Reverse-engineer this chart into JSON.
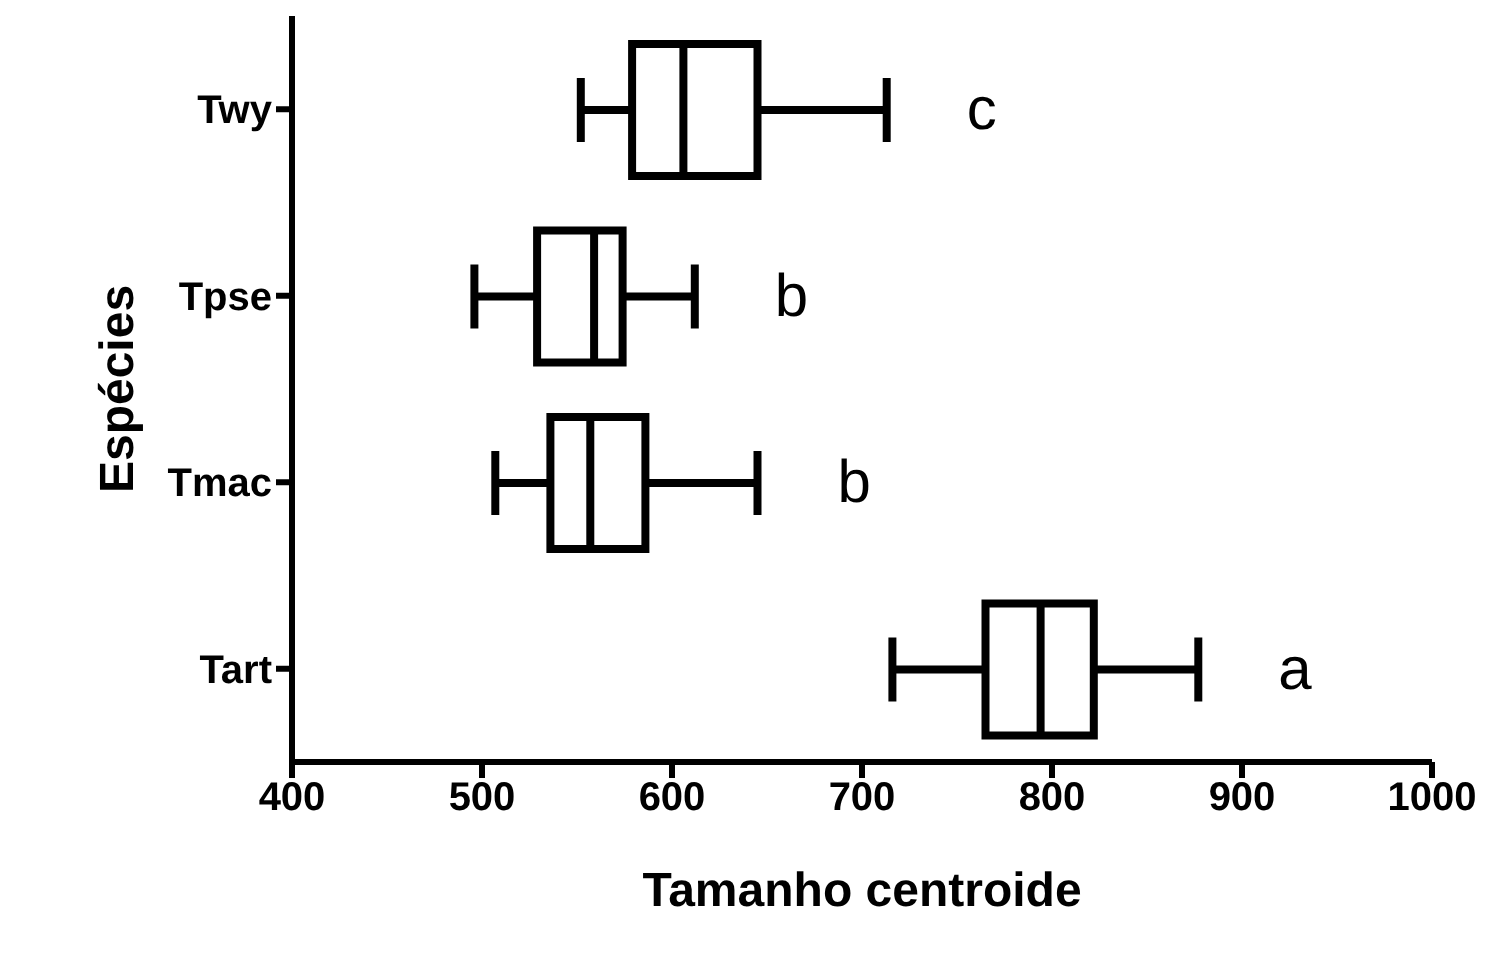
{
  "chart_data": {
    "type": "box",
    "orientation": "horizontal",
    "xlabel": "Tamanho centroide",
    "ylabel": "Espécies",
    "categories": [
      "Twy",
      "Tpse",
      "Tmac",
      "Tart"
    ],
    "boxes": [
      {
        "low": 552,
        "q1": 579,
        "median": 606,
        "q3": 645,
        "high": 713
      },
      {
        "low": 496,
        "q1": 529,
        "median": 559,
        "q3": 574,
        "high": 612
      },
      {
        "low": 507,
        "q1": 536,
        "median": 557,
        "q3": 586,
        "high": 645
      },
      {
        "low": 716,
        "q1": 765,
        "median": 794,
        "q3": 822,
        "high": 877
      }
    ],
    "color": "#000000",
    "xlim": [
      400,
      1000
    ],
    "xticks": [
      400,
      500,
      600,
      700,
      800,
      900,
      1000
    ],
    "annotations": [
      "c",
      "b",
      "b",
      "a"
    ],
    "grid": false
  }
}
